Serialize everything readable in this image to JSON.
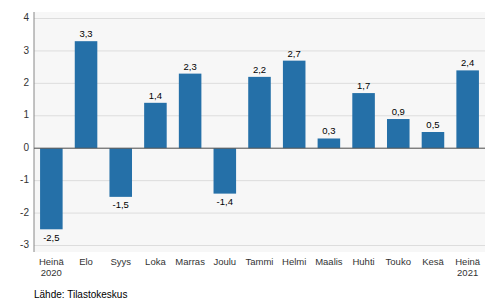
{
  "chart_data": {
    "type": "bar",
    "categories": [
      "Heinä\n2020",
      "Elo",
      "Syys",
      "Loka",
      "Marras",
      "Joulu",
      "Tammi",
      "Helmi",
      "Maalis",
      "Huhti",
      "Touko",
      "Kesä",
      "Heinä\n2021"
    ],
    "values": [
      -2.5,
      3.3,
      -1.5,
      1.4,
      2.3,
      -1.4,
      2.2,
      2.7,
      0.3,
      1.7,
      0.9,
      0.5,
      2.4
    ],
    "value_labels": [
      "-2,5",
      "3,3",
      "-1,5",
      "1,4",
      "2,3",
      "-1,4",
      "2,2",
      "2,7",
      "0,3",
      "1,7",
      "0,9",
      "0,5",
      "2,4"
    ],
    "data_labels": true,
    "color": "#2570a8",
    "ylim": [
      -3.2,
      4.2
    ],
    "yticks": [
      -3,
      -2,
      -1,
      0,
      1,
      2,
      3,
      4
    ],
    "grid": true,
    "annotations": [
      "Lähde: Tilastokeskus"
    ]
  }
}
